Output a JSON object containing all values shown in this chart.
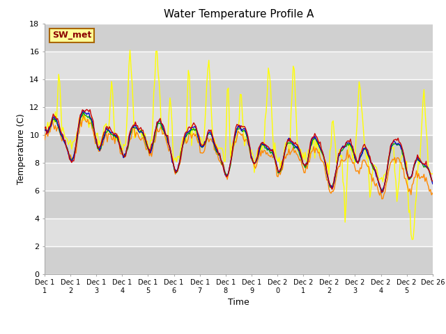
{
  "title": "Water Temperature Profile A",
  "xlabel": "Time",
  "ylabel": "Temperature (C)",
  "ylim": [
    0,
    18
  ],
  "xlim": [
    0,
    1
  ],
  "background_color": "#ffffff",
  "plot_bg_color": "#e8e8e8",
  "series_colors": {
    "0cm": "#cc0000",
    "+5cm": "#0000cc",
    "+10cm": "#00aa00",
    "+30cm": "#ff8800",
    "+50cm": "#ffff00"
  },
  "legend_label": "SW_met",
  "legend_box_color": "#ffff99",
  "legend_box_edge": "#aa6600",
  "tick_labels": [
    "Dec 1\n1",
    "Dec 1\n2",
    "Dec 1\n3",
    "Dec 1\n4",
    "Dec 1\n5",
    "Dec 1\n6",
    "Dec 1\n7",
    "Dec 1\n8",
    "Dec 1\n9",
    "Dec 2\n0",
    "Dec 2\n1",
    "Dec 2\n2",
    "Dec 2\n3",
    "Dec 2\n4",
    "Dec 2\n5",
    "Dec 26"
  ],
  "yticks": [
    0,
    2,
    4,
    6,
    8,
    10,
    12,
    14,
    16,
    18
  ]
}
